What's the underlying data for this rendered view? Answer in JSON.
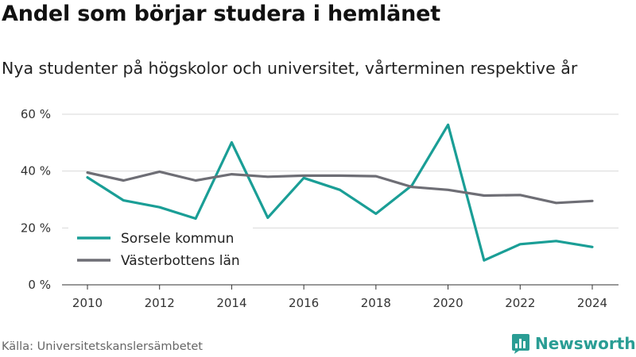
{
  "title": "Andel som börjar studera i hemlänet",
  "subtitle": "Nya studenter på högskolor och universitet, vårterminen respektive år",
  "source": "Källa: Universitetskanslersämbetet",
  "brand": {
    "name": "Newsworthy",
    "icon": "newsworthy-logo-icon",
    "color": "#2a9d94"
  },
  "chart_data": {
    "type": "line",
    "x": [
      2010,
      2011,
      2012,
      2013,
      2014,
      2015,
      2016,
      2017,
      2018,
      2019,
      2020,
      2021,
      2022,
      2023,
      2024
    ],
    "xticks": [
      2010,
      2012,
      2014,
      2016,
      2018,
      2020,
      2022,
      2024
    ],
    "xtick_labels": [
      "2010",
      "2012",
      "2014",
      "2016",
      "2018",
      "2020",
      "2022",
      "2024"
    ],
    "ylim": [
      0,
      60
    ],
    "yticks": [
      0,
      20,
      40,
      60
    ],
    "ytick_labels": [
      "0 %",
      "20 %",
      "40 %",
      "60 %"
    ],
    "grid": true,
    "legend_position": "bottom-left",
    "series": [
      {
        "name": "Sorsele kommun",
        "color": "#1a9e96",
        "values": [
          37.8,
          29.7,
          27.3,
          23.3,
          50.1,
          23.6,
          37.6,
          33.4,
          25.0,
          35.0,
          56.3,
          8.6,
          14.3,
          15.4,
          13.3
        ]
      },
      {
        "name": "Västerbottens län",
        "color": "#6e6e75",
        "values": [
          39.5,
          36.7,
          39.8,
          36.7,
          38.9,
          38.0,
          38.4,
          38.4,
          38.2,
          34.4,
          33.4,
          31.4,
          31.6,
          28.8,
          29.5
        ]
      }
    ]
  }
}
